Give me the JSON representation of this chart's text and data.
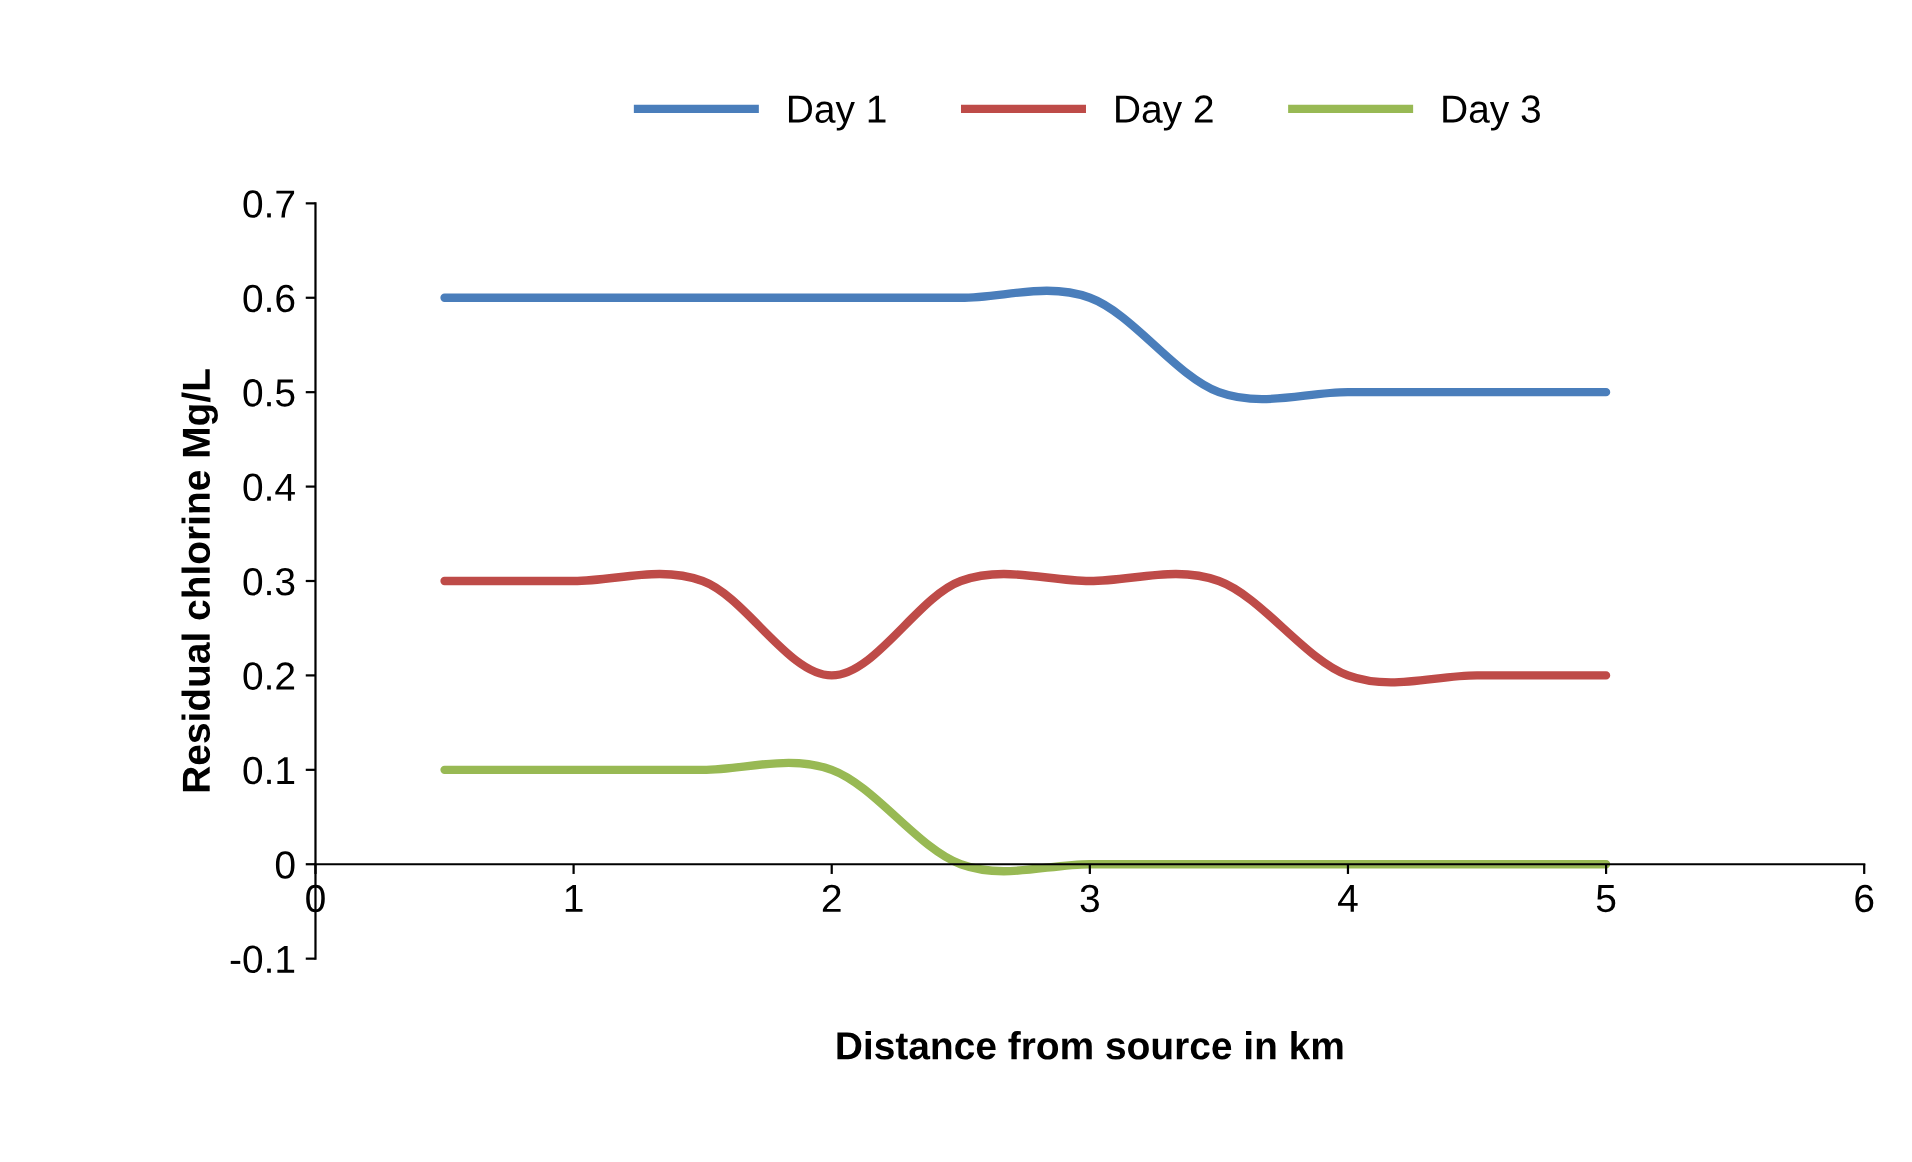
{
  "chart_data": {
    "type": "line",
    "xlabel": "Distance from source in km",
    "ylabel": "Residual chlorine Mg/L",
    "x": [
      0.5,
      1,
      1.5,
      2,
      2.5,
      3,
      3.5,
      4,
      4.5,
      5
    ],
    "series": [
      {
        "name": "Day 1",
        "color": "#4a7ebb",
        "values": [
          0.6,
          0.6,
          0.6,
          0.6,
          0.6,
          0.6,
          0.5,
          0.5,
          0.5,
          0.5
        ]
      },
      {
        "name": "Day 2",
        "color": "#be4b48",
        "values": [
          0.3,
          0.3,
          0.3,
          0.2,
          0.3,
          0.3,
          0.3,
          0.2,
          0.2,
          0.2
        ]
      },
      {
        "name": "Day 3",
        "color": "#98b954",
        "values": [
          0.1,
          0.1,
          0.1,
          0.1,
          0.0,
          0.0,
          0.0,
          0.0,
          0.0,
          0.0
        ]
      }
    ],
    "xlim": [
      0,
      6
    ],
    "xticks": [
      0,
      1,
      2,
      3,
      4,
      5,
      6
    ],
    "ylim": [
      -0.1,
      0.7
    ],
    "yticks": [
      -0.1,
      0,
      0.1,
      0.2,
      0.3,
      0.4,
      0.5,
      0.6,
      0.7
    ],
    "grid": false,
    "legend": "top",
    "marker": "none",
    "line_style": "solid"
  }
}
